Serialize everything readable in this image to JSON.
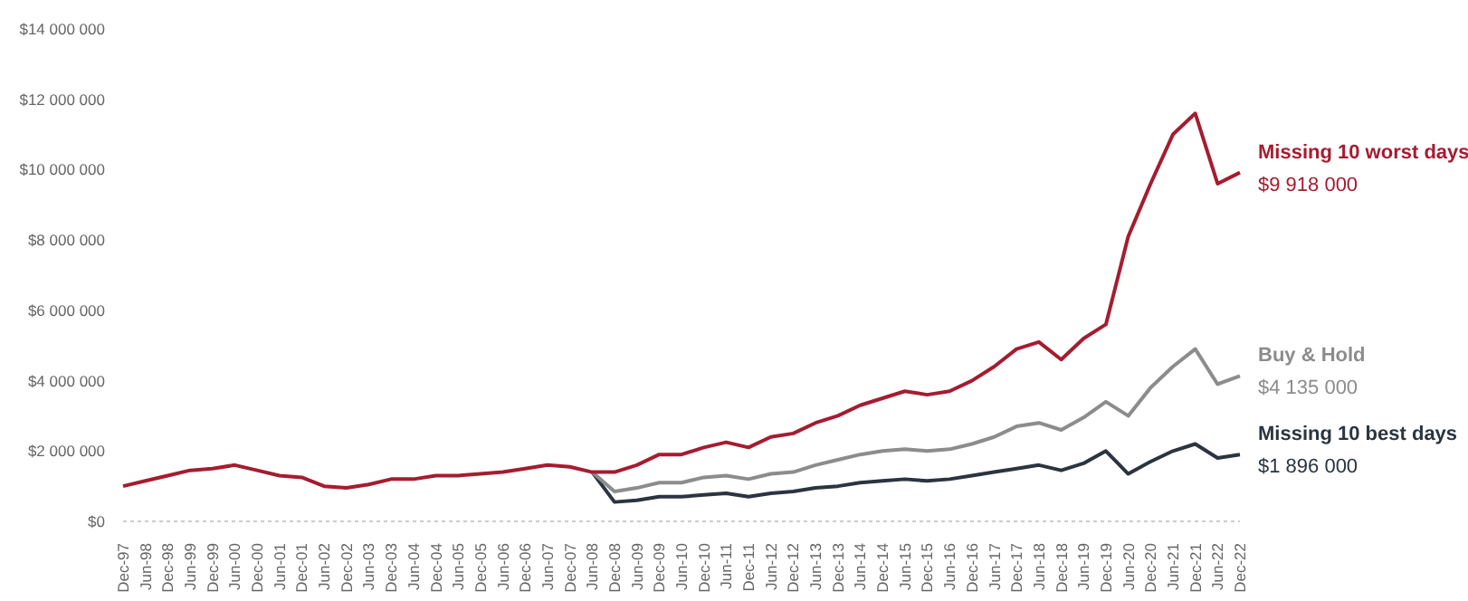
{
  "chart_data": {
    "type": "line",
    "categories": [
      "Dec-97",
      "Jun-98",
      "Dec-98",
      "Jun-99",
      "Dec-99",
      "Jun-00",
      "Dec-00",
      "Jun-01",
      "Dec-01",
      "Jun-02",
      "Dec-02",
      "Jun-03",
      "Dec-03",
      "Jun-04",
      "Dec-04",
      "Jun-05",
      "Dec-05",
      "Jun-06",
      "Dec-06",
      "Jun-07",
      "Dec-07",
      "Jun-08",
      "Dec-08",
      "Jun-09",
      "Dec-09",
      "Jun-10",
      "Dec-10",
      "Jun-11",
      "Dec-11",
      "Jun-12",
      "Dec-12",
      "Jun-13",
      "Dec-13",
      "Jun-14",
      "Dec-14",
      "Jun-15",
      "Dec-15",
      "Jun-16",
      "Dec-16",
      "Jun-17",
      "Dec-17",
      "Jun-18",
      "Dec-18",
      "Jun-19",
      "Dec-19",
      "Jun-20",
      "Dec-20",
      "Jun-21",
      "Dec-21",
      "Jun-22",
      "Dec-22"
    ],
    "series": [
      {
        "name": "Missing 10 worst days",
        "color": "#a51c30",
        "values": [
          1000000,
          1150000,
          1300000,
          1450000,
          1500000,
          1600000,
          1450000,
          1300000,
          1250000,
          1000000,
          950000,
          1050000,
          1200000,
          1200000,
          1300000,
          1300000,
          1350000,
          1400000,
          1500000,
          1600000,
          1550000,
          1400000,
          1400000,
          1600000,
          1900000,
          1900000,
          2100000,
          2250000,
          2100000,
          2400000,
          2500000,
          2800000,
          3000000,
          3300000,
          3500000,
          3700000,
          3600000,
          3700000,
          4000000,
          4400000,
          4900000,
          5100000,
          4600000,
          5200000,
          5600000,
          8100000,
          9600000,
          11000000,
          11600000,
          9600000,
          9918000
        ]
      },
      {
        "name": "Buy & Hold",
        "color": "#8c8c8c",
        "values": [
          null,
          null,
          null,
          null,
          null,
          null,
          null,
          null,
          null,
          null,
          null,
          null,
          null,
          null,
          null,
          null,
          null,
          null,
          null,
          null,
          null,
          1400000,
          850000,
          950000,
          1100000,
          1100000,
          1250000,
          1300000,
          1200000,
          1350000,
          1400000,
          1600000,
          1750000,
          1900000,
          2000000,
          2050000,
          2000000,
          2050000,
          2200000,
          2400000,
          2700000,
          2800000,
          2600000,
          2950000,
          3400000,
          3000000,
          3800000,
          4400000,
          4900000,
          3900000,
          4135000
        ]
      },
      {
        "name": "Missing 10 best days",
        "color": "#2b3440",
        "values": [
          null,
          null,
          null,
          null,
          null,
          null,
          null,
          null,
          null,
          null,
          null,
          null,
          null,
          null,
          null,
          null,
          null,
          null,
          null,
          null,
          null,
          1400000,
          550000,
          600000,
          700000,
          700000,
          750000,
          800000,
          700000,
          800000,
          850000,
          950000,
          1000000,
          1100000,
          1150000,
          1200000,
          1150000,
          1200000,
          1300000,
          1400000,
          1500000,
          1600000,
          1450000,
          1650000,
          2000000,
          1350000,
          1700000,
          2000000,
          2200000,
          1800000,
          1896000
        ]
      }
    ],
    "annotations": [
      {
        "text": "$9 918 000",
        "x": "Dec-22",
        "y": 9918000
      },
      {
        "text": "$4 135 000",
        "x": "Dec-22",
        "y": 4135000
      },
      {
        "text": "$1 896 000",
        "x": "Dec-22",
        "y": 1896000
      }
    ],
    "ylim": [
      0,
      14000000
    ],
    "yticks": [
      {
        "value": 0,
        "label": "$0"
      },
      {
        "value": 2000000,
        "label": "$2 000 000"
      },
      {
        "value": 4000000,
        "label": "$4 000 000"
      },
      {
        "value": 6000000,
        "label": "$6 000 000"
      },
      {
        "value": 8000000,
        "label": "$8 000 000"
      },
      {
        "value": 10000000,
        "label": "$10 000 000"
      },
      {
        "value": 12000000,
        "label": "$12 000 000"
      },
      {
        "value": 14000000,
        "label": "$14 000 000"
      }
    ],
    "grid": false,
    "legend": false,
    "marker": "none",
    "line_style": "solid"
  }
}
